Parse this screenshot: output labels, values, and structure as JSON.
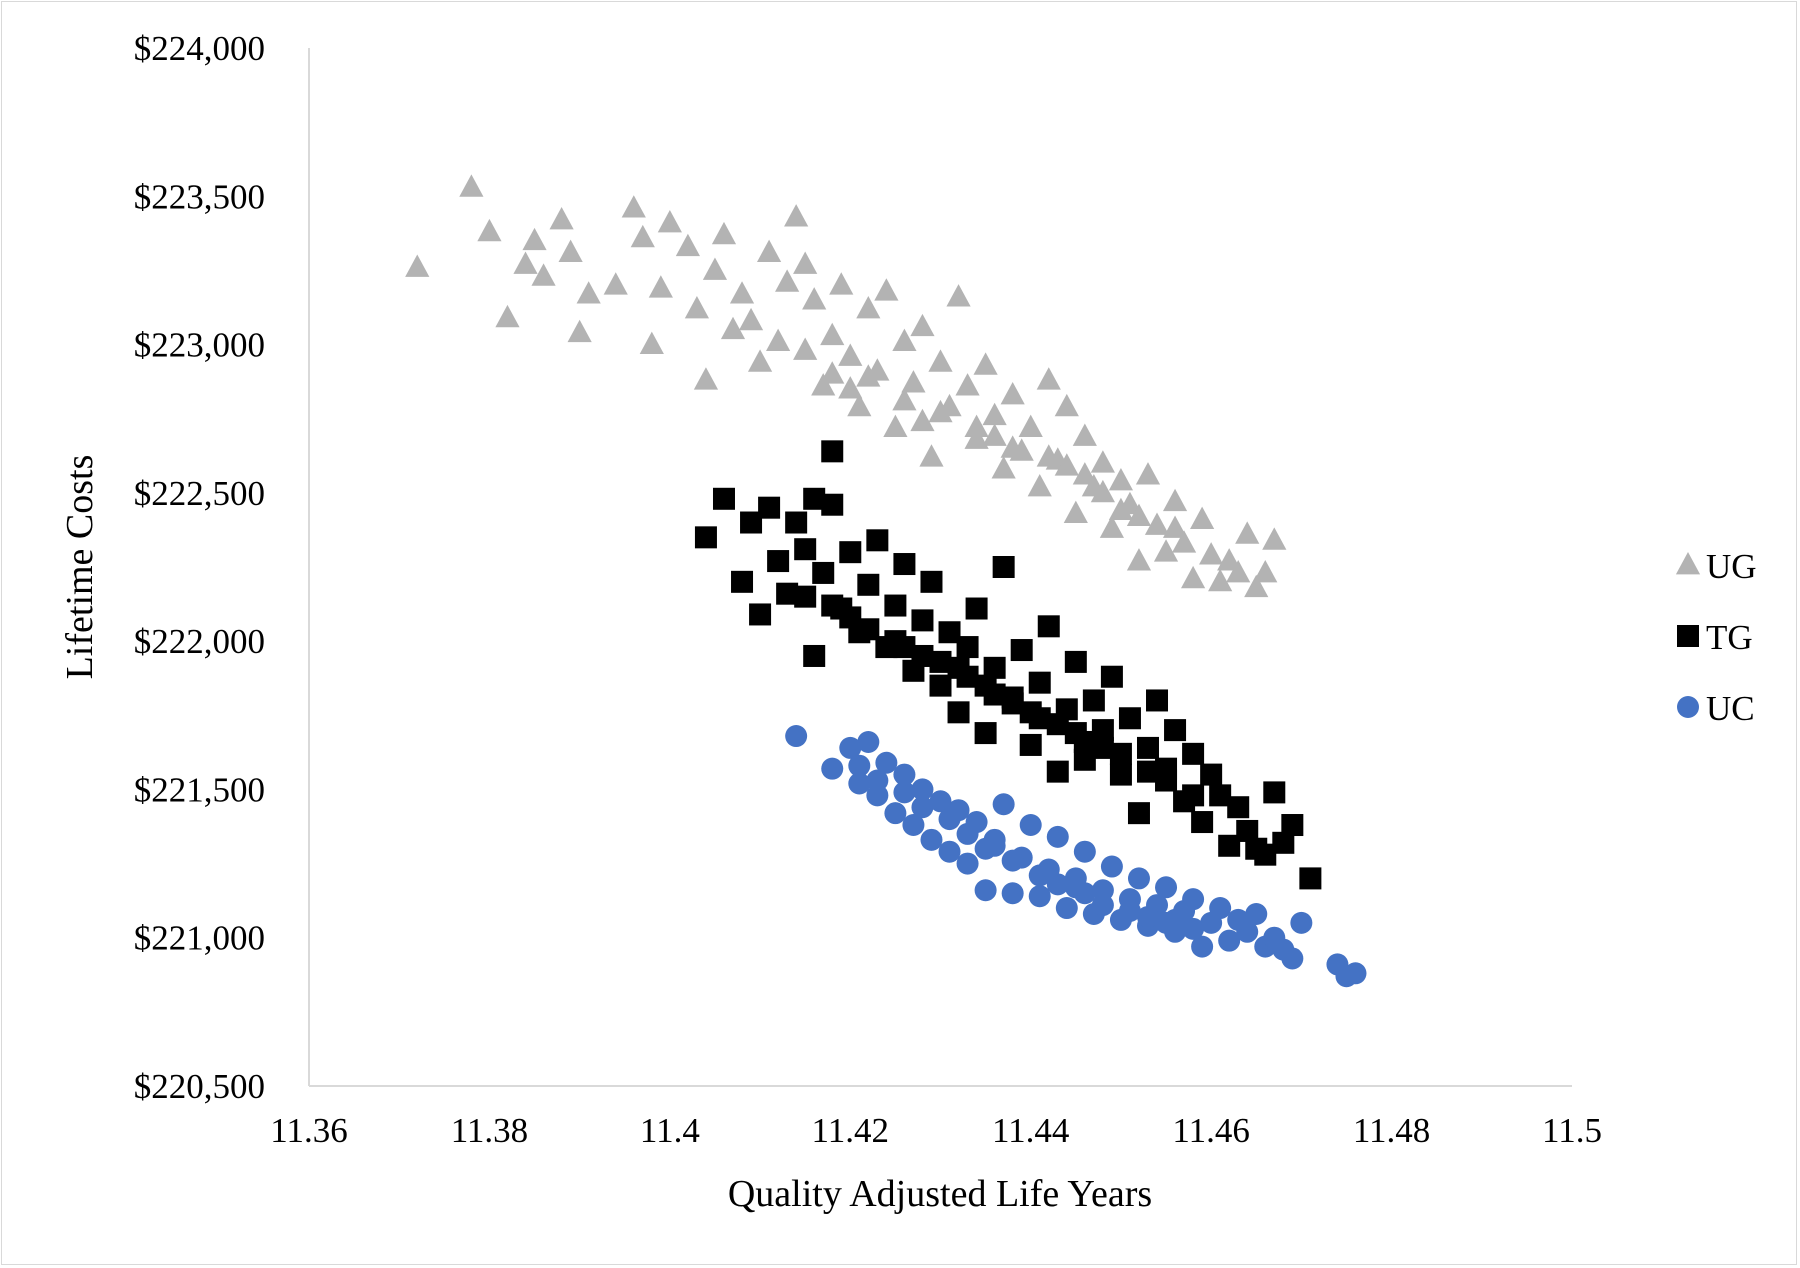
{
  "chart_data": {
    "type": "scatter",
    "title": "",
    "xlabel": "Quality Adjusted Life Years",
    "ylabel": "Lifetime Costs",
    "xlim": [
      11.36,
      11.5
    ],
    "ylim": [
      220500,
      224000
    ],
    "xticks": [
      "11.36",
      "11.38",
      "11.4",
      "11.42",
      "11.44",
      "11.46",
      "11.48",
      "11.5"
    ],
    "yticks": [
      "$220,500",
      "$221,000",
      "$221,500",
      "$222,000",
      "$222,500",
      "$223,000",
      "$223,500",
      "$224,000"
    ],
    "grid": false,
    "legend_position": "right",
    "series": [
      {
        "name": "UG",
        "marker": "triangle",
        "color": "#b3b3b3",
        "points": [
          [
            11.372,
            223260
          ],
          [
            11.378,
            223530
          ],
          [
            11.38,
            223380
          ],
          [
            11.382,
            223090
          ],
          [
            11.384,
            223270
          ],
          [
            11.385,
            223350
          ],
          [
            11.386,
            223230
          ],
          [
            11.388,
            223420
          ],
          [
            11.389,
            223310
          ],
          [
            11.39,
            223040
          ],
          [
            11.391,
            223170
          ],
          [
            11.394,
            223200
          ],
          [
            11.396,
            223460
          ],
          [
            11.397,
            223360
          ],
          [
            11.398,
            223000
          ],
          [
            11.4,
            223410
          ],
          [
            11.402,
            223330
          ],
          [
            11.404,
            222880
          ],
          [
            11.405,
            223250
          ],
          [
            11.406,
            223370
          ],
          [
            11.408,
            223170
          ],
          [
            11.41,
            222940
          ],
          [
            11.411,
            223310
          ],
          [
            11.413,
            223210
          ],
          [
            11.414,
            223430
          ],
          [
            11.415,
            223270
          ],
          [
            11.416,
            223150
          ],
          [
            11.417,
            222860
          ],
          [
            11.418,
            223030
          ],
          [
            11.419,
            223200
          ],
          [
            11.42,
            222960
          ],
          [
            11.421,
            222790
          ],
          [
            11.422,
            223120
          ],
          [
            11.423,
            222910
          ],
          [
            11.424,
            223180
          ],
          [
            11.425,
            222720
          ],
          [
            11.426,
            223010
          ],
          [
            11.427,
            222870
          ],
          [
            11.428,
            223060
          ],
          [
            11.429,
            222620
          ],
          [
            11.43,
            222940
          ],
          [
            11.431,
            222790
          ],
          [
            11.432,
            223160
          ],
          [
            11.433,
            222860
          ],
          [
            11.434,
            222680
          ],
          [
            11.435,
            222930
          ],
          [
            11.436,
            222760
          ],
          [
            11.437,
            222580
          ],
          [
            11.438,
            222830
          ],
          [
            11.439,
            222640
          ],
          [
            11.44,
            222720
          ],
          [
            11.441,
            222520
          ],
          [
            11.442,
            222880
          ],
          [
            11.443,
            222610
          ],
          [
            11.444,
            222790
          ],
          [
            11.445,
            222430
          ],
          [
            11.446,
            222690
          ],
          [
            11.447,
            222520
          ],
          [
            11.448,
            222600
          ],
          [
            11.449,
            222380
          ],
          [
            11.45,
            222540
          ],
          [
            11.451,
            222460
          ],
          [
            11.452,
            222270
          ],
          [
            11.453,
            222560
          ],
          [
            11.454,
            222390
          ],
          [
            11.455,
            222300
          ],
          [
            11.456,
            222470
          ],
          [
            11.457,
            222330
          ],
          [
            11.458,
            222210
          ],
          [
            11.459,
            222410
          ],
          [
            11.46,
            222290
          ],
          [
            11.461,
            222200
          ],
          [
            11.462,
            222270
          ],
          [
            11.463,
            222230
          ],
          [
            11.464,
            222360
          ],
          [
            11.465,
            222180
          ],
          [
            11.466,
            222230
          ],
          [
            11.467,
            222340
          ],
          [
            11.412,
            223010
          ],
          [
            11.418,
            222900
          ],
          [
            11.426,
            222810
          ],
          [
            11.434,
            222720
          ],
          [
            11.442,
            222620
          ],
          [
            11.448,
            222500
          ],
          [
            11.452,
            222420
          ],
          [
            11.409,
            223080
          ],
          [
            11.415,
            222980
          ],
          [
            11.422,
            222890
          ],
          [
            11.43,
            222770
          ],
          [
            11.438,
            222650
          ],
          [
            11.446,
            222560
          ],
          [
            11.403,
            223120
          ],
          [
            11.399,
            223190
          ],
          [
            11.407,
            223050
          ],
          [
            11.42,
            222850
          ],
          [
            11.436,
            222690
          ],
          [
            11.444,
            222590
          ],
          [
            11.456,
            222380
          ],
          [
            11.45,
            222440
          ],
          [
            11.428,
            222740
          ]
        ]
      },
      {
        "name": "TG",
        "marker": "square",
        "color": "#000000",
        "points": [
          [
            11.404,
            222350
          ],
          [
            11.406,
            222480
          ],
          [
            11.408,
            222200
          ],
          [
            11.409,
            222400
          ],
          [
            11.41,
            222090
          ],
          [
            11.411,
            222450
          ],
          [
            11.412,
            222270
          ],
          [
            11.413,
            222160
          ],
          [
            11.414,
            222400
          ],
          [
            11.415,
            222310
          ],
          [
            11.416,
            222480
          ],
          [
            11.416,
            221950
          ],
          [
            11.417,
            222230
          ],
          [
            11.418,
            222460
          ],
          [
            11.418,
            222640
          ],
          [
            11.419,
            222110
          ],
          [
            11.42,
            222300
          ],
          [
            11.421,
            222030
          ],
          [
            11.422,
            222190
          ],
          [
            11.423,
            222340
          ],
          [
            11.424,
            221980
          ],
          [
            11.425,
            222120
          ],
          [
            11.426,
            222260
          ],
          [
            11.427,
            221900
          ],
          [
            11.428,
            222070
          ],
          [
            11.429,
            222200
          ],
          [
            11.43,
            221850
          ],
          [
            11.431,
            222030
          ],
          [
            11.432,
            221760
          ],
          [
            11.433,
            221980
          ],
          [
            11.434,
            222110
          ],
          [
            11.435,
            221690
          ],
          [
            11.436,
            221910
          ],
          [
            11.437,
            222250
          ],
          [
            11.438,
            221810
          ],
          [
            11.439,
            221970
          ],
          [
            11.44,
            221650
          ],
          [
            11.441,
            221860
          ],
          [
            11.442,
            222050
          ],
          [
            11.443,
            221560
          ],
          [
            11.444,
            221770
          ],
          [
            11.445,
            221930
          ],
          [
            11.446,
            221600
          ],
          [
            11.447,
            221800
          ],
          [
            11.448,
            221700
          ],
          [
            11.449,
            221880
          ],
          [
            11.45,
            221550
          ],
          [
            11.451,
            221740
          ],
          [
            11.452,
            221420
          ],
          [
            11.453,
            221640
          ],
          [
            11.454,
            221800
          ],
          [
            11.455,
            221570
          ],
          [
            11.456,
            221700
          ],
          [
            11.457,
            221460
          ],
          [
            11.458,
            221620
          ],
          [
            11.459,
            221390
          ],
          [
            11.46,
            221550
          ],
          [
            11.461,
            221480
          ],
          [
            11.462,
            221310
          ],
          [
            11.463,
            221440
          ],
          [
            11.464,
            221360
          ],
          [
            11.465,
            221300
          ],
          [
            11.466,
            221280
          ],
          [
            11.467,
            221490
          ],
          [
            11.468,
            221320
          ],
          [
            11.469,
            221380
          ],
          [
            11.471,
            221200
          ],
          [
            11.415,
            222150
          ],
          [
            11.42,
            222080
          ],
          [
            11.425,
            222000
          ],
          [
            11.43,
            221930
          ],
          [
            11.435,
            221850
          ],
          [
            11.44,
            221760
          ],
          [
            11.445,
            221690
          ],
          [
            11.45,
            221620
          ],
          [
            11.455,
            221530
          ],
          [
            11.422,
            222040
          ],
          [
            11.428,
            221950
          ],
          [
            11.433,
            221880
          ],
          [
            11.438,
            221790
          ],
          [
            11.443,
            221720
          ],
          [
            11.448,
            221640
          ],
          [
            11.453,
            221560
          ],
          [
            11.458,
            221480
          ],
          [
            11.418,
            222120
          ],
          [
            11.436,
            221820
          ],
          [
            11.446,
            221660
          ],
          [
            11.432,
            221910
          ],
          [
            11.426,
            221980
          ],
          [
            11.441,
            221740
          ]
        ]
      },
      {
        "name": "UC",
        "marker": "circle",
        "color": "#4472c4",
        "points": [
          [
            11.414,
            221680
          ],
          [
            11.418,
            221570
          ],
          [
            11.42,
            221640
          ],
          [
            11.421,
            221520
          ],
          [
            11.422,
            221660
          ],
          [
            11.423,
            221480
          ],
          [
            11.424,
            221590
          ],
          [
            11.425,
            221420
          ],
          [
            11.426,
            221550
          ],
          [
            11.427,
            221380
          ],
          [
            11.428,
            221500
          ],
          [
            11.429,
            221330
          ],
          [
            11.43,
            221460
          ],
          [
            11.431,
            221290
          ],
          [
            11.432,
            221430
          ],
          [
            11.433,
            221250
          ],
          [
            11.434,
            221390
          ],
          [
            11.435,
            221160
          ],
          [
            11.436,
            221310
          ],
          [
            11.437,
            221450
          ],
          [
            11.438,
            221150
          ],
          [
            11.439,
            221270
          ],
          [
            11.44,
            221380
          ],
          [
            11.441,
            221140
          ],
          [
            11.442,
            221230
          ],
          [
            11.443,
            221340
          ],
          [
            11.444,
            221100
          ],
          [
            11.445,
            221200
          ],
          [
            11.446,
            221290
          ],
          [
            11.447,
            221080
          ],
          [
            11.448,
            221160
          ],
          [
            11.449,
            221240
          ],
          [
            11.45,
            221060
          ],
          [
            11.451,
            221130
          ],
          [
            11.452,
            221200
          ],
          [
            11.453,
            221040
          ],
          [
            11.454,
            221110
          ],
          [
            11.455,
            221170
          ],
          [
            11.456,
            221020
          ],
          [
            11.457,
            221090
          ],
          [
            11.458,
            221130
          ],
          [
            11.459,
            220970
          ],
          [
            11.46,
            221050
          ],
          [
            11.461,
            221100
          ],
          [
            11.462,
            220990
          ],
          [
            11.463,
            221060
          ],
          [
            11.464,
            221020
          ],
          [
            11.465,
            221080
          ],
          [
            11.466,
            220970
          ],
          [
            11.467,
            221000
          ],
          [
            11.468,
            220960
          ],
          [
            11.469,
            220930
          ],
          [
            11.47,
            221050
          ],
          [
            11.474,
            220910
          ],
          [
            11.475,
            220870
          ],
          [
            11.476,
            220880
          ],
          [
            11.423,
            221530
          ],
          [
            11.428,
            221440
          ],
          [
            11.433,
            221350
          ],
          [
            11.438,
            221260
          ],
          [
            11.443,
            221180
          ],
          [
            11.448,
            221110
          ],
          [
            11.453,
            221070
          ],
          [
            11.458,
            221030
          ],
          [
            11.426,
            221490
          ],
          [
            11.431,
            221400
          ],
          [
            11.436,
            221330
          ],
          [
            11.441,
            221210
          ],
          [
            11.446,
            221150
          ],
          [
            11.451,
            221090
          ],
          [
            11.456,
            221060
          ],
          [
            11.421,
            221580
          ],
          [
            11.435,
            221300
          ],
          [
            11.445,
            221170
          ],
          [
            11.455,
            221050
          ]
        ]
      }
    ]
  }
}
